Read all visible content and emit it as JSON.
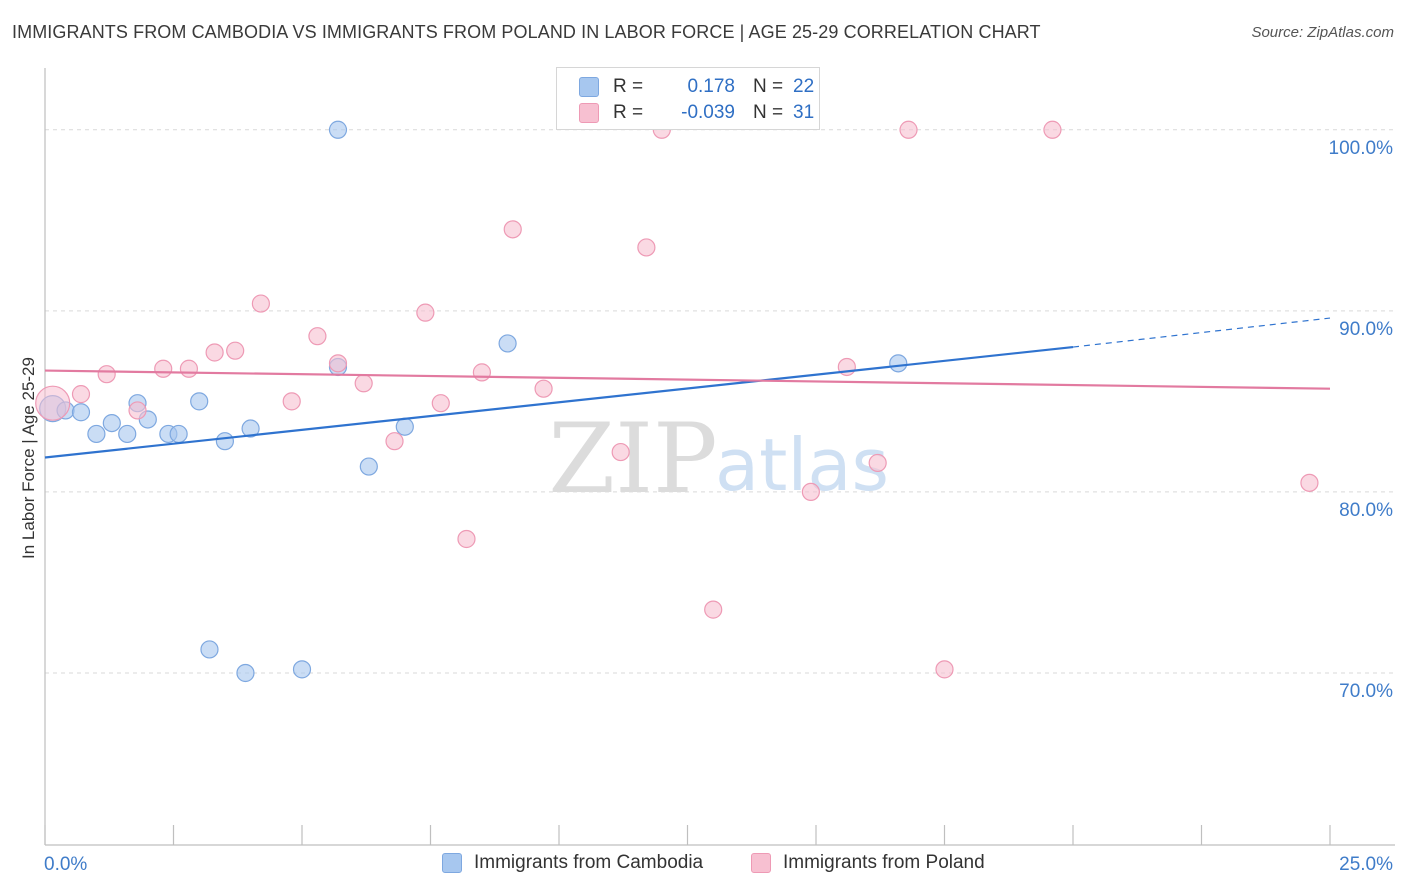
{
  "title": "IMMIGRANTS FROM CAMBODIA VS IMMIGRANTS FROM POLAND IN LABOR FORCE | AGE 25-29 CORRELATION CHART",
  "source": "Source: ZipAtlas.com",
  "watermark": {
    "zip": "ZIP",
    "atlas": "atlas"
  },
  "stats": {
    "rows": [
      {
        "r_label": "R =",
        "r_value": "0.178",
        "n_label": "N =",
        "n_value": "22",
        "color": "#a7c7ef",
        "border": "#7ea8e0"
      },
      {
        "r_label": "R =",
        "r_value": "-0.039",
        "n_label": "N =",
        "n_value": "31",
        "color": "#f7c0d1",
        "border": "#ee9ab5"
      }
    ]
  },
  "chart_data": {
    "type": "scatter",
    "xlabel": "",
    "ylabel": "In Labor Force | Age 25-29",
    "x_range": [
      0,
      25
    ],
    "y_range": [
      60.5,
      103.3
    ],
    "x_tick_labels": [
      {
        "value": 0,
        "label": "0.0%"
      },
      {
        "value": 25,
        "label": "25.0%"
      }
    ],
    "y_tick_labels": [
      {
        "value": 100,
        "label": "100.0%"
      },
      {
        "value": 90,
        "label": "90.0%"
      },
      {
        "value": 80,
        "label": "80.0%"
      },
      {
        "value": 70,
        "label": "70.0%"
      }
    ],
    "grid_y": [
      100,
      90,
      80,
      70
    ],
    "series": [
      {
        "name": "Immigrants from Cambodia",
        "color": "#a7c7ef",
        "edge": "#7ea8e0",
        "line_color": "#2f73cf",
        "trend": {
          "x0": 0,
          "y0": 81.9,
          "x1": 20,
          "y1": 88.0,
          "x_dash_end": 25,
          "y_dash_end": 89.6
        },
        "points": [
          [
            0.15,
            84.6
          ],
          [
            0.4,
            84.5
          ],
          [
            0.7,
            84.4
          ],
          [
            1.0,
            83.2
          ],
          [
            1.3,
            83.8
          ],
          [
            1.6,
            83.2
          ],
          [
            1.8,
            84.9
          ],
          [
            2.0,
            84.0
          ],
          [
            2.4,
            83.2
          ],
          [
            2.6,
            83.2
          ],
          [
            3.0,
            85.0
          ],
          [
            3.5,
            82.8
          ],
          [
            4.0,
            83.5
          ],
          [
            3.2,
            71.3
          ],
          [
            3.9,
            70.0
          ],
          [
            5.0,
            70.2
          ],
          [
            5.7,
            100.0
          ],
          [
            5.7,
            86.9
          ],
          [
            6.3,
            81.4
          ],
          [
            7.0,
            83.6
          ],
          [
            9.0,
            88.2
          ],
          [
            16.6,
            87.1
          ]
        ]
      },
      {
        "name": "Immigrants from Poland",
        "color": "#f7c0d1",
        "edge": "#ee9ab5",
        "line_color": "#e27aa0",
        "trend": {
          "x0": 0,
          "y0": 86.7,
          "x1": 25,
          "y1": 85.7
        },
        "points": [
          [
            0.15,
            84.9
          ],
          [
            0.7,
            85.4
          ],
          [
            1.2,
            86.5
          ],
          [
            1.8,
            84.5
          ],
          [
            2.3,
            86.8
          ],
          [
            2.8,
            86.8
          ],
          [
            3.3,
            87.7
          ],
          [
            3.7,
            87.8
          ],
          [
            4.2,
            90.4
          ],
          [
            4.8,
            85.0
          ],
          [
            5.3,
            88.6
          ],
          [
            5.7,
            87.1
          ],
          [
            6.2,
            86.0
          ],
          [
            6.8,
            82.8
          ],
          [
            7.4,
            89.9
          ],
          [
            7.7,
            84.9
          ],
          [
            8.2,
            77.4
          ],
          [
            8.5,
            86.6
          ],
          [
            9.1,
            94.5
          ],
          [
            9.7,
            85.7
          ],
          [
            11.2,
            82.2
          ],
          [
            11.7,
            93.5
          ],
          [
            12.0,
            100.0
          ],
          [
            13.0,
            73.5
          ],
          [
            14.9,
            80.0
          ],
          [
            15.6,
            86.9
          ],
          [
            16.2,
            81.6
          ],
          [
            16.8,
            100.0
          ],
          [
            17.5,
            70.2
          ],
          [
            19.6,
            100.0
          ],
          [
            24.6,
            80.5
          ]
        ]
      }
    ],
    "legend_position": "bottom-center",
    "grid": true
  },
  "legend": [
    {
      "label": "Immigrants from Cambodia",
      "color": "#a7c7ef",
      "border": "#7ea8e0"
    },
    {
      "label": "Immigrants from Poland",
      "color": "#f7c0d1",
      "border": "#ee9ab5"
    }
  ]
}
